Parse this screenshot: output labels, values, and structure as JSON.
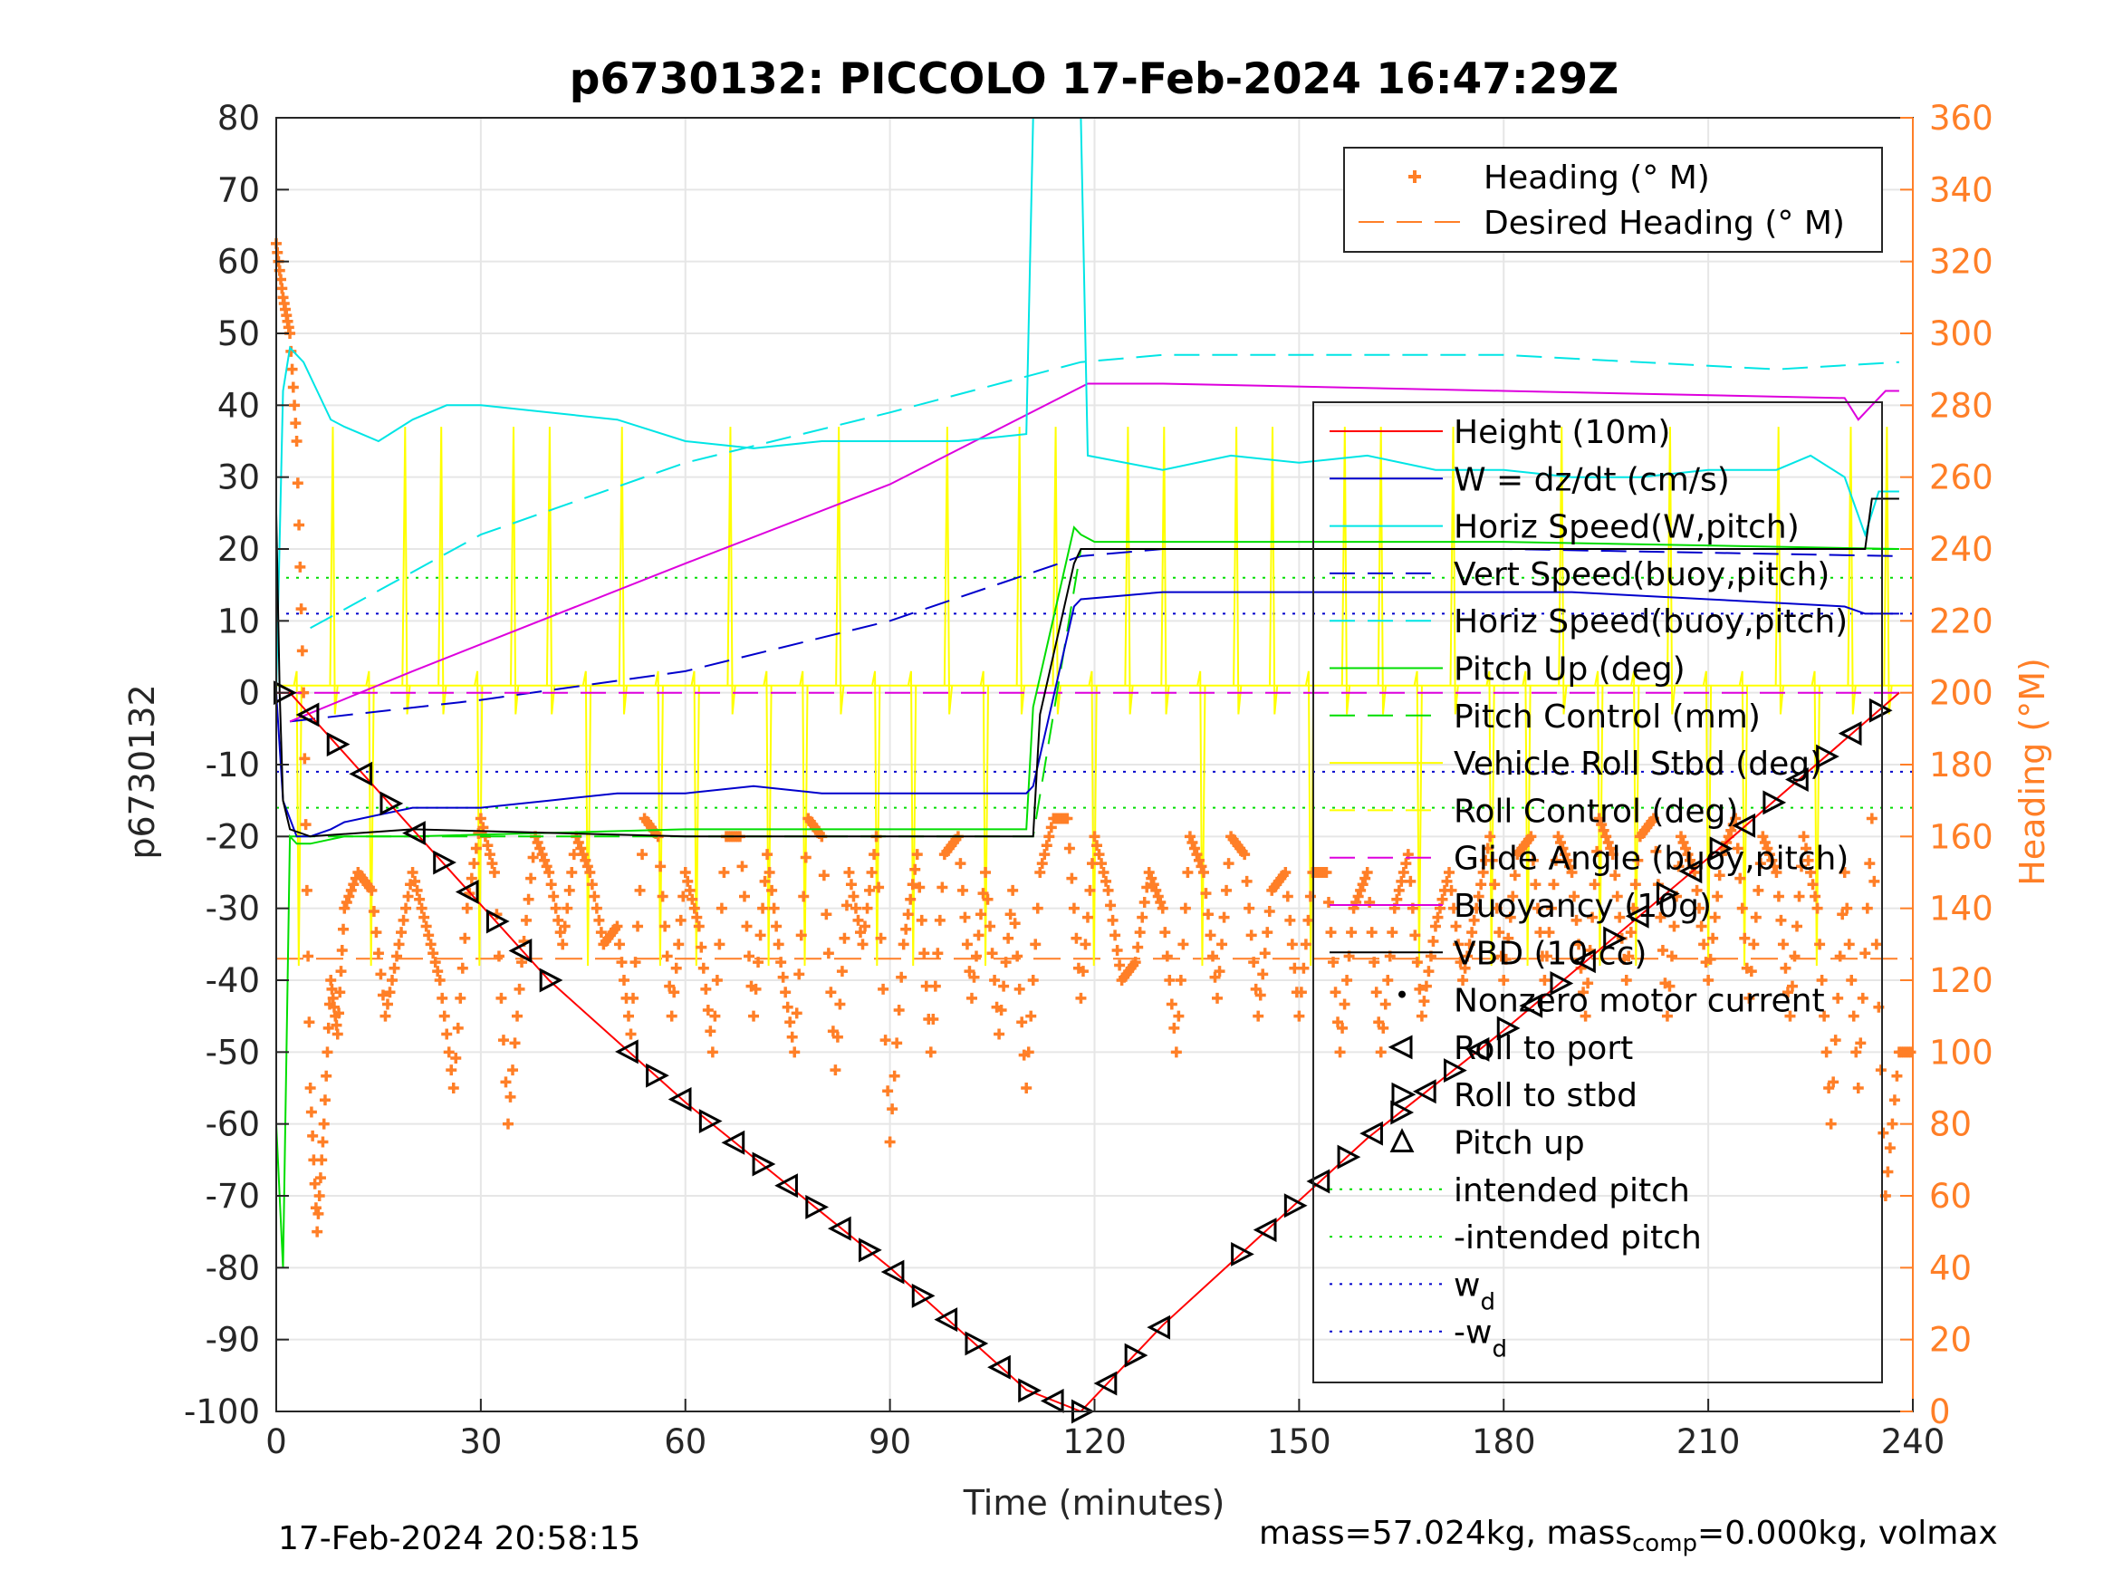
{
  "chart_data": {
    "type": "line",
    "title": "p6730132: PICCOLO 17-Feb-2024 16:47:29Z",
    "xlabel": "Time (minutes)",
    "ylabel": "p6730132",
    "y2label": "Heading (°M)",
    "xlim": [
      0,
      240
    ],
    "ylim": [
      -100,
      80
    ],
    "y2lim": [
      0,
      360
    ],
    "xticks": [
      "0",
      "30",
      "60",
      "90",
      "120",
      "150",
      "180",
      "210",
      "240"
    ],
    "yticks": [
      "-100",
      "-90",
      "-80",
      "-70",
      "-60",
      "-50",
      "-40",
      "-30",
      "-20",
      "-10",
      "0",
      "10",
      "20",
      "30",
      "40",
      "50",
      "60",
      "70",
      "80"
    ],
    "y2ticks": [
      "0",
      "20",
      "40",
      "60",
      "80",
      "100",
      "120",
      "140",
      "160",
      "180",
      "200",
      "220",
      "240",
      "260",
      "280",
      "300",
      "320",
      "340",
      "360"
    ],
    "grid": true,
    "legend_right_entries": [
      {
        "name": "Heading (° M)",
        "color": "#ff7f27",
        "style": "plus"
      },
      {
        "name": "Desired Heading (° M)",
        "color": "#ff7f27",
        "style": "dashed"
      }
    ],
    "legend_left_entries": [
      {
        "name": "Height (10m)",
        "color": "#ff0000",
        "style": "solid"
      },
      {
        "name": "W = dz/dt (cm/s)",
        "color": "#0000cc",
        "style": "solid"
      },
      {
        "name": "Horiz Speed(W,pitch)",
        "color": "#00e5e5",
        "style": "solid"
      },
      {
        "name": "Vert Speed(buoy,pitch)",
        "color": "#0000cc",
        "style": "dashed"
      },
      {
        "name": "Horiz Speed(buoy,pitch)",
        "color": "#00e5e5",
        "style": "dashed"
      },
      {
        "name": "Pitch Up (deg)",
        "color": "#00dd00",
        "style": "solid"
      },
      {
        "name": "Pitch Control (mm)",
        "color": "#00dd00",
        "style": "dashed"
      },
      {
        "name": "Vehicle Roll Stbd (deg)",
        "color": "#ffff00",
        "style": "solid"
      },
      {
        "name": "Roll Control (deg)",
        "color": "#ffff00",
        "style": "dashed"
      },
      {
        "name": "Glide Angle (buoy,pitch)",
        "color": "#dd00dd",
        "style": "dashed"
      },
      {
        "name": "Buoyancy (10g)",
        "color": "#dd00dd",
        "style": "solid"
      },
      {
        "name": "VBD (10 cc)",
        "color": "#000000",
        "style": "solid"
      },
      {
        "name": "Nonzero motor current",
        "color": "#000000",
        "style": "dot"
      },
      {
        "name": "Roll to port",
        "color": "#000000",
        "style": "tri-left"
      },
      {
        "name": "Roll to stbd",
        "color": "#000000",
        "style": "tri-right"
      },
      {
        "name": "Pitch up",
        "color": "#000000",
        "style": "tri-up"
      },
      {
        "name": "intended pitch",
        "color": "#00dd00",
        "style": "dotted"
      },
      {
        "name": "-intended pitch",
        "color": "#00dd00",
        "style": "dotted"
      },
      {
        "name": "w",
        "sub": "d",
        "color": "#0000cc",
        "style": "dotted"
      },
      {
        "name": "-w",
        "sub": "d",
        "color": "#0000cc",
        "style": "dotted"
      }
    ],
    "height_10m": {
      "x": [
        0,
        2,
        20,
        40,
        60,
        90,
        110,
        118,
        130,
        160,
        180,
        210,
        238
      ],
      "y": [
        0,
        0,
        -19,
        -40,
        -57,
        -80,
        -97,
        -100,
        -88,
        -62,
        -47,
        -23,
        0
      ]
    },
    "vert_speed_w": {
      "x": [
        0,
        1,
        3,
        5,
        8,
        10,
        15,
        20,
        30,
        40,
        50,
        60,
        70,
        80,
        90,
        100,
        110,
        111,
        117,
        118,
        130,
        150,
        170,
        190,
        210,
        230,
        233,
        238
      ],
      "y": [
        0,
        -15,
        -20,
        -20,
        -19,
        -18,
        -17,
        -16,
        -16,
        -15,
        -14,
        -14,
        -13,
        -14,
        -14,
        -14,
        -14,
        -13,
        12,
        13,
        14,
        14,
        14,
        14,
        13,
        12,
        11,
        11
      ]
    },
    "horiz_speed_w": {
      "x": [
        0,
        1,
        2,
        4,
        6,
        8,
        10,
        15,
        20,
        25,
        30,
        40,
        50,
        60,
        70,
        80,
        90,
        100,
        110,
        111,
        118,
        119,
        130,
        140,
        150,
        160,
        170,
        180,
        190,
        200,
        210,
        220,
        225,
        230,
        233,
        235,
        238
      ],
      "y": [
        0,
        42,
        48,
        46,
        42,
        38,
        37,
        35,
        38,
        40,
        40,
        39,
        38,
        35,
        34,
        35,
        35,
        35,
        36,
        80,
        80,
        33,
        31,
        33,
        32,
        33,
        31,
        31,
        30,
        30,
        31,
        31,
        33,
        30,
        22,
        28,
        28
      ]
    },
    "vert_speed_buoy": {
      "x": [
        2,
        30,
        60,
        90,
        118,
        130,
        180,
        238
      ],
      "y": [
        -4,
        -1,
        3,
        10,
        19,
        20,
        20,
        19
      ]
    },
    "horiz_speed_buoy": {
      "x": [
        5,
        30,
        60,
        90,
        118,
        130,
        180,
        220,
        238
      ],
      "y": [
        9,
        22,
        32,
        39,
        46,
        47,
        47,
        45,
        46
      ]
    },
    "pitch_up": {
      "x": [
        0,
        1,
        2,
        3,
        5,
        10,
        20,
        60,
        110,
        111,
        117,
        118,
        120,
        140,
        180,
        238
      ],
      "y": [
        -60,
        -80,
        -20,
        -21,
        -21,
        -20,
        -20,
        -19,
        -19,
        -2,
        23,
        22,
        21,
        21,
        21,
        20
      ]
    },
    "pitch_control": {
      "x": [
        2,
        111,
        118,
        238
      ],
      "y": [
        -20,
        -20,
        20,
        20
      ]
    },
    "glide_angle": {
      "x": [
        0,
        240
      ],
      "y": [
        0,
        0
      ]
    },
    "buoyancy": {
      "x": [
        2,
        20,
        60,
        90,
        119,
        130,
        180,
        230,
        232,
        234,
        236,
        238
      ],
      "y": [
        -4,
        3,
        18,
        29,
        43,
        43,
        42,
        41,
        38,
        40,
        42,
        42
      ]
    },
    "vbd": {
      "x": [
        0,
        0.5,
        1,
        2,
        5,
        20,
        60,
        111,
        112,
        117,
        118,
        233,
        234,
        236,
        238
      ],
      "y": [
        25,
        0,
        -15,
        -19,
        -20,
        -19,
        -20,
        -20,
        -3,
        18,
        20,
        20,
        27,
        27,
        27
      ]
    },
    "intended_pitch": [
      16,
      -16
    ],
    "wd": [
      11,
      -11
    ],
    "desired_heading": 126,
    "heading": {
      "x": [
        0,
        1,
        2,
        3,
        4,
        5,
        6,
        7,
        8,
        9,
        10,
        12,
        14,
        16,
        18,
        20,
        22,
        24,
        26,
        28,
        30,
        32,
        34,
        36,
        38,
        40,
        42,
        44,
        46,
        48,
        50,
        52,
        54,
        56,
        58,
        60,
        62,
        64,
        66,
        68,
        70,
        72,
        74,
        76,
        78,
        80,
        82,
        84,
        86,
        88,
        90,
        92,
        94,
        96,
        98,
        100,
        102,
        104,
        106,
        108,
        110,
        112,
        114,
        116,
        118,
        120,
        122,
        124,
        126,
        128,
        130,
        132,
        134,
        136,
        138,
        140,
        142,
        144,
        146,
        148,
        150,
        152,
        154,
        156,
        158,
        160,
        162,
        164,
        166,
        168,
        170,
        172,
        174,
        176,
        178,
        180,
        182,
        184,
        186,
        188,
        190,
        192,
        194,
        196,
        198,
        200,
        202,
        204,
        206,
        208,
        210,
        212,
        214,
        216,
        218,
        220,
        222,
        224,
        226,
        228,
        230,
        232,
        234,
        236,
        238,
        240
      ],
      "y": [
        325,
        310,
        300,
        270,
        200,
        90,
        50,
        80,
        120,
        105,
        140,
        150,
        145,
        110,
        130,
        150,
        135,
        120,
        90,
        140,
        165,
        150,
        80,
        125,
        160,
        150,
        130,
        160,
        150,
        130,
        135,
        105,
        165,
        160,
        110,
        150,
        135,
        100,
        160,
        160,
        110,
        155,
        125,
        100,
        165,
        160,
        95,
        150,
        130,
        160,
        75,
        130,
        155,
        100,
        155,
        160,
        115,
        150,
        105,
        145,
        90,
        150,
        165,
        165,
        115,
        160,
        145,
        120,
        125,
        150,
        140,
        100,
        160,
        150,
        115,
        160,
        155,
        110,
        145,
        150,
        110,
        150,
        150,
        100,
        140,
        150,
        100,
        140,
        155,
        110,
        135,
        150,
        120,
        140,
        160,
        120,
        155,
        160,
        120,
        160,
        150,
        110,
        165,
        155,
        120,
        160,
        165,
        110,
        160,
        150,
        120,
        155,
        165,
        115,
        160,
        150,
        110,
        160,
        140,
        80,
        150,
        90,
        165,
        60,
        100,
        100
      ]
    },
    "footer_left": "17-Feb-2024 20:58:15",
    "footer_right_prefix": "mass=57.024kg, mass",
    "footer_right_sub": "comp",
    "footer_right_suffix": "=0.000kg, volmax"
  }
}
